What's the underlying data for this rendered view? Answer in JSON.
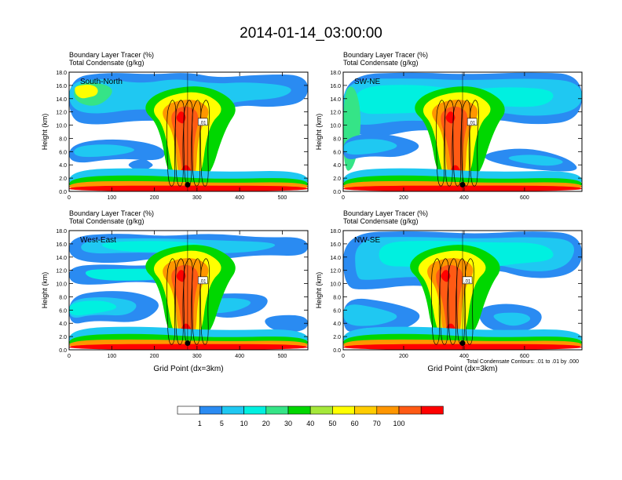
{
  "chart_data": {
    "type": "heatmap",
    "title": "2014-01-14_03:00:00",
    "colorbar": {
      "levels": [
        "1",
        "5",
        "10",
        "20",
        "30",
        "40",
        "50",
        "60",
        "70",
        "100"
      ],
      "colors": [
        "#ffffff",
        "#2a8bf2",
        "#1fc8f2",
        "#00f0e0",
        "#35e487",
        "#00d700",
        "#a5e83a",
        "#ffff00",
        "#ffcc00",
        "#ff9600",
        "#ff5a14",
        "#ff0000"
      ]
    },
    "contour_note": "Total Condensate Contours: .01 to .01 by .000",
    "panels": [
      {
        "label": "South-North",
        "title_line1": "Boundary Layer Tracer   (%)",
        "title_line2": "Total Condensate   (g/kg)",
        "ylabel": "Height (km)",
        "xlabel": "",
        "yticks": [
          "0.0",
          "2.0",
          "4.0",
          "6.0",
          "8.0",
          "10.0",
          "12.0",
          "14.0",
          "16.0",
          "18.0"
        ],
        "xticks": [
          "0",
          "100",
          "200",
          "300",
          "400",
          "500"
        ],
        "xticks_values": [
          0,
          100,
          200,
          300,
          400,
          500
        ],
        "xlim": [
          0,
          560
        ],
        "ylim": [
          0,
          18
        ],
        "marker_x": 278,
        "marker_y": 1.0,
        "contour_label": ".01"
      },
      {
        "label": "SW-NE",
        "title_line1": "Boundary Layer Tracer   (%)",
        "title_line2": "Total Condensate   (g/kg)",
        "ylabel": "Height (km)",
        "xlabel": "",
        "yticks": [
          "0.0",
          "2.0",
          "4.0",
          "6.0",
          "8.0",
          "10.0",
          "12.0",
          "14.0",
          "16.0",
          "18.0"
        ],
        "xticks": [
          "0",
          "200",
          "400",
          "600"
        ],
        "xticks_values": [
          0,
          200,
          400,
          600
        ],
        "xlim": [
          0,
          790
        ],
        "ylim": [
          0,
          18
        ],
        "marker_x": 395,
        "marker_y": 1.0,
        "contour_label": ".01"
      },
      {
        "label": "West-East",
        "title_line1": "Boundary Layer Tracer   (%)",
        "title_line2": "Total Condensate   (g/kg)",
        "ylabel": "Height (km)",
        "xlabel": "Grid Point (dx=3km)",
        "yticks": [
          "0.0",
          "2.0",
          "4.0",
          "6.0",
          "8.0",
          "10.0",
          "12.0",
          "14.0",
          "16.0",
          "18.0"
        ],
        "xticks": [
          "0",
          "100",
          "200",
          "300",
          "400",
          "500"
        ],
        "xticks_values": [
          0,
          100,
          200,
          300,
          400,
          500
        ],
        "xlim": [
          0,
          560
        ],
        "ylim": [
          0,
          18
        ],
        "marker_x": 278,
        "marker_y": 1.0,
        "contour_label": ".01"
      },
      {
        "label": "NW-SE",
        "title_line1": "Boundary Layer Tracer   (%)",
        "title_line2": "Total Condensate   (g/kg)",
        "ylabel": "Height (km)",
        "xlabel": "Grid Point (dx=3km)",
        "yticks": [
          "0.0",
          "2.0",
          "4.0",
          "6.0",
          "8.0",
          "10.0",
          "12.0",
          "14.0",
          "16.0",
          "18.0"
        ],
        "xticks": [
          "0",
          "200",
          "400",
          "600"
        ],
        "xticks_values": [
          0,
          200,
          400,
          600
        ],
        "xlim": [
          0,
          790
        ],
        "ylim": [
          0,
          18
        ],
        "marker_x": 395,
        "marker_y": 1.0,
        "contour_label": ".01"
      }
    ]
  }
}
